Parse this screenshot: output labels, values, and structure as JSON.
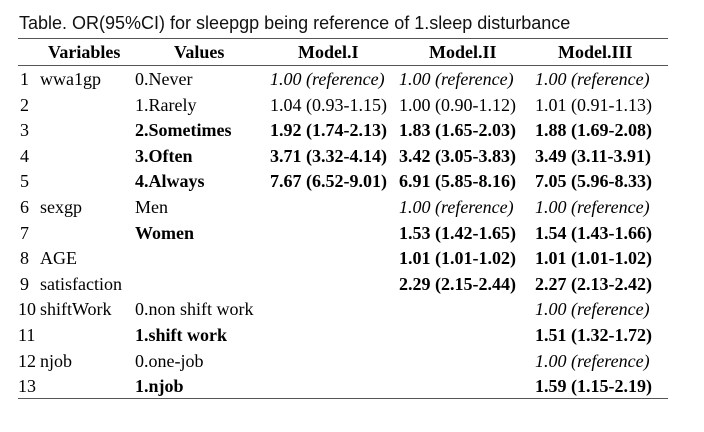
{
  "caption": "Table. OR(95%CI) for sleepgp being reference of 1.sleep disturbance",
  "headers": {
    "variables": "Variables",
    "values": "Values",
    "m1": "Model.I",
    "m2": "Model.II",
    "m3": "Model.III"
  },
  "rows": [
    {
      "num": "1",
      "var": "wwa1gp",
      "val": "0.Never",
      "m1": "1.00 (reference)",
      "m2": "1.00 (reference)",
      "m3": "1.00 (reference)",
      "bold": false,
      "ref": true
    },
    {
      "num": "2",
      "var": "",
      "val": "1.Rarely",
      "m1": "1.04 (0.93-1.15)",
      "m2": "1.00 (0.90-1.12)",
      "m3": "1.01 (0.91-1.13)",
      "bold": false,
      "ref": false
    },
    {
      "num": "3",
      "var": "",
      "val": "2.Sometimes",
      "m1": "1.92 (1.74-2.13)",
      "m2": "1.83 (1.65-2.03)",
      "m3": "1.88 (1.69-2.08)",
      "bold": true,
      "ref": false
    },
    {
      "num": "4",
      "var": "",
      "val": "3.Often",
      "m1": "3.71 (3.32-4.14)",
      "m2": "3.42 (3.05-3.83)",
      "m3": "3.49 (3.11-3.91)",
      "bold": true,
      "ref": false
    },
    {
      "num": "5",
      "var": "",
      "val": "4.Always",
      "m1": "7.67 (6.52-9.01)",
      "m2": "6.91 (5.85-8.16)",
      "m3": "7.05 (5.96-8.33)",
      "bold": true,
      "ref": false
    },
    {
      "num": "6",
      "var": "sexgp",
      "val": "Men",
      "m1": "",
      "m2": "1.00 (reference)",
      "m3": "1.00 (reference)",
      "bold": false,
      "ref": true
    },
    {
      "num": "7",
      "var": "",
      "val": "Women",
      "m1": "",
      "m2": "1.53 (1.42-1.65)",
      "m3": "1.54 (1.43-1.66)",
      "bold": true,
      "ref": false
    },
    {
      "num": "8",
      "var": "AGE",
      "val": "",
      "m1": "",
      "m2": "1.01 (1.01-1.02)",
      "m3": "1.01 (1.01-1.02)",
      "bold": true,
      "ref": false
    },
    {
      "num": "9",
      "var": "satisfaction",
      "val": "",
      "m1": "",
      "m2": "2.29 (2.15-2.44)",
      "m3": "2.27 (2.13-2.42)",
      "bold": true,
      "ref": false
    },
    {
      "num": "10",
      "var": "shiftWork",
      "val": "0.non shift work",
      "m1": "",
      "m2": "",
      "m3": "1.00 (reference)",
      "bold": false,
      "ref": true
    },
    {
      "num": "11",
      "var": "",
      "val": "1.shift work",
      "m1": "",
      "m2": "",
      "m3": "1.51 (1.32-1.72)",
      "bold": true,
      "ref": false
    },
    {
      "num": "12",
      "var": "njob",
      "val": "0.one-job",
      "m1": "",
      "m2": "",
      "m3": "1.00 (reference)",
      "bold": false,
      "ref": true
    },
    {
      "num": "13",
      "var": "",
      "val": "1.njob",
      "m1": "",
      "m2": "",
      "m3": "1.59 (1.15-2.19)",
      "bold": true,
      "ref": false
    }
  ]
}
